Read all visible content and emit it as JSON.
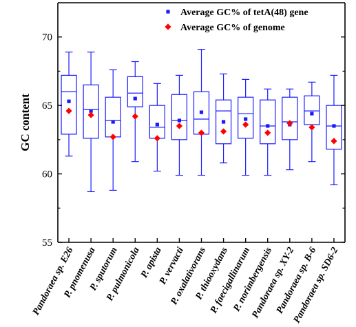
{
  "chart_data": {
    "type": "box",
    "ylabel": "GC content",
    "ylim": [
      55,
      72.5
    ],
    "yticks": [
      55,
      60,
      65,
      70
    ],
    "categories": [
      "Pandoraea sp. E26",
      "P. pnomenusa",
      "P. sputorum",
      "P. pulmonicola",
      "P. apista",
      "P. vervacti",
      "P. oxalativorans",
      "P. thiooxydans",
      "P. faecigallinarum",
      "P. norimbergensis",
      "Pandoraea sp. XY-2",
      "Pandoraea sp. B-6",
      "Pandoraea sp. SD6-2"
    ],
    "boxes": [
      {
        "min": 61.3,
        "q1": 62.9,
        "median": 66.0,
        "q3": 67.2,
        "max": 68.9
      },
      {
        "min": 58.7,
        "q1": 62.6,
        "median": 64.7,
        "q3": 66.5,
        "max": 68.9
      },
      {
        "min": 58.8,
        "q1": 62.7,
        "median": 63.9,
        "q3": 65.6,
        "max": 67.6
      },
      {
        "min": 60.9,
        "q1": 64.9,
        "median": 65.9,
        "q3": 67.1,
        "max": 68.2
      },
      {
        "min": 60.2,
        "q1": 62.6,
        "median": 63.4,
        "q3": 65.0,
        "max": 66.6
      },
      {
        "min": 59.9,
        "q1": 62.5,
        "median": 63.9,
        "q3": 65.8,
        "max": 67.2
      },
      {
        "min": 59.9,
        "q1": 62.9,
        "median": 64.0,
        "q3": 66.0,
        "max": 69.1
      },
      {
        "min": 60.8,
        "q1": 62.2,
        "median": 64.6,
        "q3": 65.4,
        "max": 67.3
      },
      {
        "min": 59.9,
        "q1": 62.6,
        "median": 64.4,
        "q3": 65.6,
        "max": 66.9
      },
      {
        "min": 59.9,
        "q1": 62.2,
        "median": 63.5,
        "q3": 65.4,
        "max": 66.2
      },
      {
        "min": 60.3,
        "q1": 62.5,
        "median": 63.8,
        "q3": 65.6,
        "max": 66.2
      },
      {
        "min": 60.9,
        "q1": 63.6,
        "median": 64.6,
        "q3": 65.7,
        "max": 66.7
      },
      {
        "min": 59.2,
        "q1": 61.8,
        "median": 63.5,
        "q3": 65.0,
        "max": 67.2
      }
    ],
    "series": [
      {
        "name": "Average GC% of tetA(48) gene",
        "marker": "square",
        "color": "#1a1aff",
        "values": [
          65.3,
          64.6,
          63.8,
          65.5,
          63.6,
          63.9,
          64.5,
          63.8,
          64.0,
          63.5,
          63.6,
          64.4,
          63.5
        ]
      },
      {
        "name": "Average GC% of genome",
        "marker": "diamond",
        "color": "#ff0000",
        "values": [
          64.6,
          64.3,
          62.7,
          64.2,
          62.6,
          63.5,
          63.0,
          63.1,
          63.6,
          63.0,
          63.7,
          63.4,
          62.4
        ]
      }
    ],
    "box_color": "#1a1aff",
    "legend_position": "top-right",
    "grid": false
  }
}
